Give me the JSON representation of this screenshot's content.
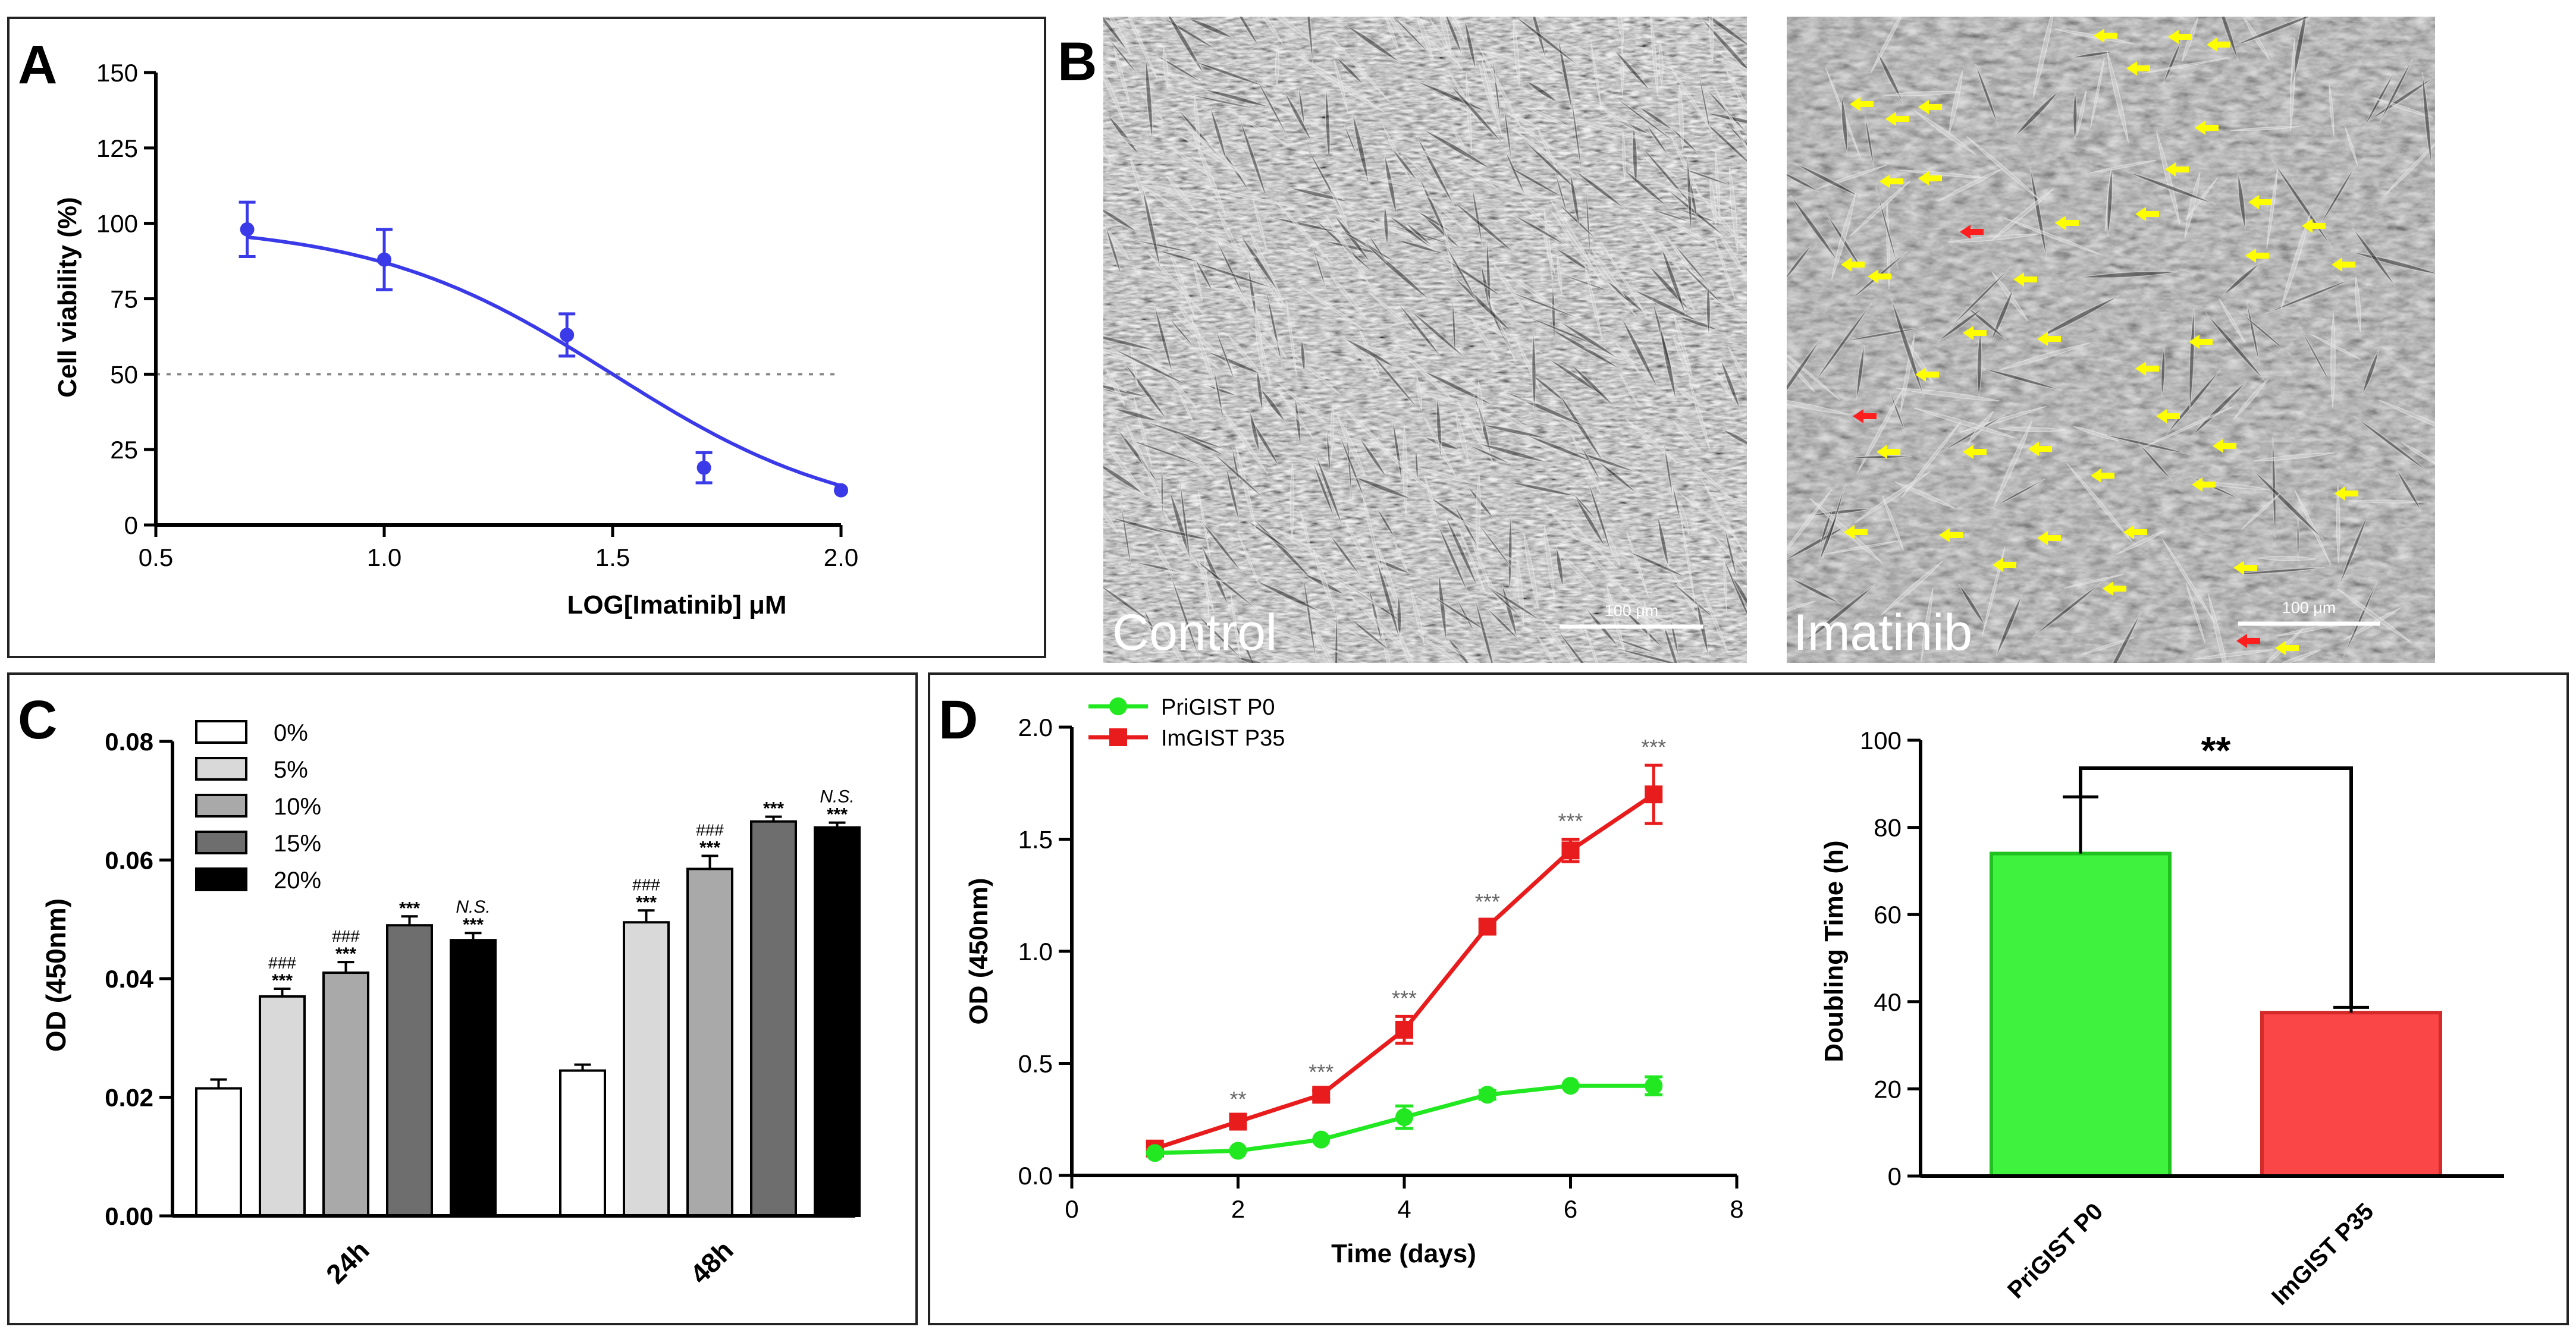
{
  "panels": {
    "A": {
      "letter": "A"
    },
    "B": {
      "letter": "B",
      "left_label": "Control",
      "right_label": "Imatinib",
      "scale_bar": "100 μm"
    },
    "C": {
      "letter": "C"
    },
    "D": {
      "letter": "D"
    }
  },
  "chart_data": [
    {
      "id": "A",
      "type": "scatter",
      "title": "",
      "xlabel": "LOG[Imatinib] μM",
      "ylabel": "Cell viability (%)",
      "xlim": [
        0.5,
        2.0
      ],
      "ylim": [
        0,
        150
      ],
      "x_ticks": [
        "0.5",
        "1.0",
        "1.5",
        "2.0"
      ],
      "y_ticks": [
        "0",
        "25",
        "50",
        "75",
        "100",
        "125",
        "150"
      ],
      "points": [
        {
          "x": 0.7,
          "y": 98,
          "err": 9
        },
        {
          "x": 1.0,
          "y": 88,
          "err": 10
        },
        {
          "x": 1.4,
          "y": 63,
          "err": 7
        },
        {
          "x": 1.7,
          "y": 19,
          "err": 5
        },
        {
          "x": 2.0,
          "y": 11.5,
          "err": 0
        }
      ],
      "fit": {
        "model": "4PL",
        "top": 100,
        "bottom": 0,
        "logIC50": 1.5,
        "hill": -1.65
      },
      "reference_line": 50,
      "color": "#3a3ae8"
    },
    {
      "id": "C",
      "type": "bar",
      "title": "",
      "xlabel": "",
      "ylabel": "OD (450nm)",
      "ylim": [
        0,
        0.08
      ],
      "y_ticks": [
        "0.00",
        "0.02",
        "0.04",
        "0.06",
        "0.08"
      ],
      "categories": [
        "24h",
        "48h"
      ],
      "series": [
        {
          "name": "0%",
          "color": "#ffffff",
          "values": [
            0.0215,
            0.0245
          ],
          "err": [
            0.0015,
            0.001
          ],
          "stars": [
            "",
            ""
          ],
          "hash": [
            "",
            ""
          ]
        },
        {
          "name": "5%",
          "color": "#d9d9d9",
          "values": [
            0.037,
            0.0495
          ],
          "err": [
            0.0013,
            0.002
          ],
          "stars": [
            "***",
            "***"
          ],
          "hash": [
            "###",
            "###"
          ]
        },
        {
          "name": "10%",
          "color": "#a9a9a9",
          "values": [
            0.041,
            0.0585
          ],
          "err": [
            0.0018,
            0.0022
          ],
          "stars": [
            "***",
            "***"
          ],
          "hash": [
            "###",
            "###"
          ]
        },
        {
          "name": "15%",
          "color": "#6e6e6e",
          "values": [
            0.049,
            0.0665
          ],
          "err": [
            0.0015,
            0.0008
          ],
          "stars": [
            "***",
            "***"
          ],
          "hash": [
            "",
            ""
          ]
        },
        {
          "name": "20%",
          "color": "#000000",
          "values": [
            0.0465,
            0.0655
          ],
          "err": [
            0.0012,
            0.0008
          ],
          "stars": [
            "***",
            "***"
          ],
          "ns": [
            "N.S.",
            "N.S."
          ]
        }
      ]
    },
    {
      "id": "D-left",
      "type": "line",
      "title": "",
      "xlabel": "Time (days)",
      "ylabel": "OD (450nm)",
      "xlim": [
        0,
        8
      ],
      "ylim": [
        0,
        2.0
      ],
      "x_ticks": [
        "0",
        "2",
        "4",
        "6",
        "8"
      ],
      "y_ticks": [
        "0.0",
        "0.5",
        "1.0",
        "1.5",
        "2.0"
      ],
      "x": [
        1,
        2,
        3,
        4,
        5,
        6,
        7
      ],
      "series": [
        {
          "name": "PriGIST P0",
          "color": "#22e822",
          "marker": "circle",
          "values": [
            0.1,
            0.11,
            0.16,
            0.26,
            0.36,
            0.4,
            0.4
          ],
          "err": [
            0.01,
            0.01,
            0.01,
            0.05,
            0.02,
            0.015,
            0.04
          ]
        },
        {
          "name": "ImGIST P35",
          "color": "#e81c1c",
          "marker": "square",
          "values": [
            0.12,
            0.24,
            0.36,
            0.65,
            1.11,
            1.45,
            1.7
          ],
          "err": [
            0.01,
            0.02,
            0.02,
            0.06,
            0.03,
            0.05,
            0.13
          ]
        }
      ],
      "annotations": [
        "",
        "**",
        "***",
        "***",
        "***",
        "***",
        "***"
      ]
    },
    {
      "id": "D-right",
      "type": "bar",
      "title": "",
      "xlabel": "",
      "ylabel": "Doubling Time (h)",
      "ylim": [
        0,
        100
      ],
      "y_ticks": [
        "0",
        "20",
        "40",
        "60",
        "80",
        "100"
      ],
      "categories": [
        "PriGIST P0",
        "ImGIST P35"
      ],
      "values": [
        74,
        37.5
      ],
      "err": [
        13,
        1.2
      ],
      "colors": [
        "#3ef23e",
        "#fa4646"
      ],
      "edge_colors": [
        "#1fc21f",
        "#d42a2a"
      ],
      "significance": "**"
    }
  ]
}
